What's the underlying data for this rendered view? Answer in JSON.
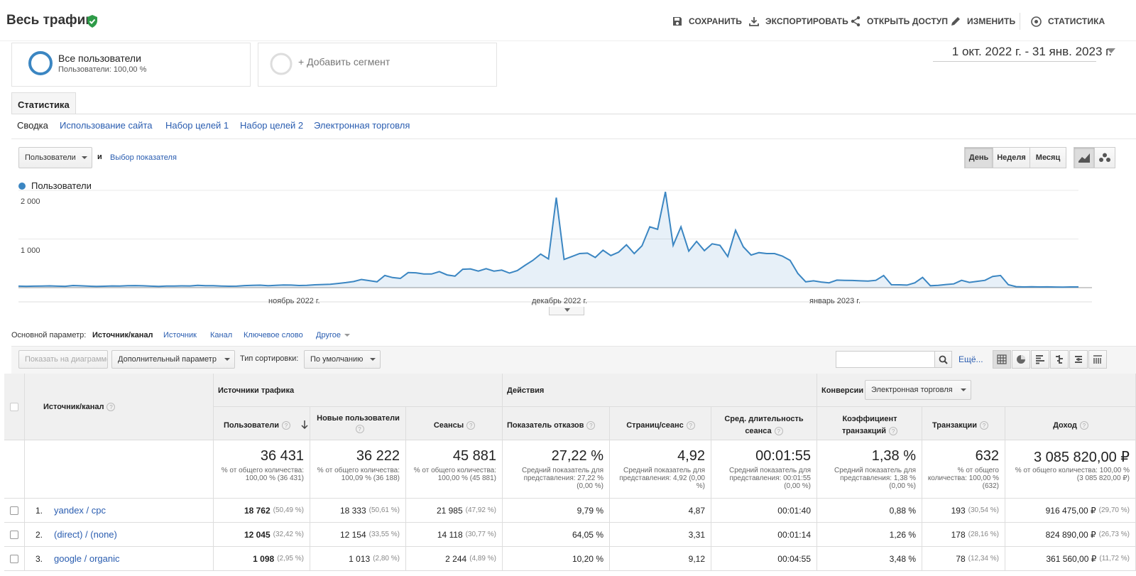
{
  "header": {
    "title": "Весь трафик",
    "actions": [
      {
        "label": "СОХРАНИТЬ",
        "icon": "save-icon"
      },
      {
        "label": "ЭКСПОРТИРОВАТЬ",
        "icon": "download-icon"
      },
      {
        "label": "ОТКРЫТЬ ДОСТУП",
        "icon": "share-icon"
      },
      {
        "label": "ИЗМЕНИТЬ",
        "icon": "pencil-icon"
      },
      {
        "label": "СТАТИСТИКА",
        "icon": "insights-icon"
      }
    ]
  },
  "segments": {
    "active_name": "Все пользователи",
    "active_sub": "Пользователи: 100,00 %",
    "add_label": "+ Добавить сегмент"
  },
  "date_range": "1 окт. 2022 г. - 31 янв. 2023 г.",
  "tabs": {
    "main": "Статистика",
    "sub": [
      "Сводка",
      "Использование сайта",
      "Набор целей 1",
      "Набор целей 2",
      "Электронная торговля"
    ]
  },
  "chart_controls": {
    "metric_select": "Пользователи",
    "and_label": "и",
    "choose_metric": "Выбор показателя",
    "granularity": [
      "День",
      "Неделя",
      "Месяц"
    ]
  },
  "chart_data": {
    "type": "area",
    "series": [
      {
        "name": "Пользователи",
        "values": [
          30,
          28,
          31,
          34,
          36,
          30,
          28,
          44,
          38,
          31,
          27,
          29,
          35,
          33,
          40,
          42,
          38,
          31,
          26,
          32,
          34,
          37,
          35,
          47,
          39,
          41,
          33,
          29,
          31,
          42,
          48,
          51,
          40,
          46,
          54,
          52,
          44,
          48,
          58,
          64,
          70,
          86,
          104,
          126,
          168,
          145,
          120,
          250,
          208,
          190,
          310,
          305,
          280,
          280,
          330,
          262,
          236,
          378,
          385,
          340,
          390,
          340,
          360,
          300,
          350,
          460,
          560,
          690,
          590,
          1850,
          580,
          640,
          700,
          710,
          620,
          770,
          660,
          730,
          880,
          700,
          860,
          1250,
          1200,
          1970,
          870,
          1250,
          750,
          950,
          760,
          900,
          870,
          640,
          1180,
          840,
          670,
          720,
          700,
          700,
          650,
          560,
          290,
          120,
          140,
          115,
          100,
          155,
          150,
          148,
          140,
          135,
          150,
          250,
          60,
          58,
          52,
          100,
          210,
          40,
          48,
          64,
          78,
          150,
          108,
          130,
          150,
          230,
          250,
          60,
          20,
          15,
          18,
          14,
          16,
          13,
          12,
          15,
          14
        ]
      }
    ],
    "y_ticks": [
      "2 000",
      "1 000"
    ],
    "x_ticks": [
      "ноябрь 2022 г.",
      "декабрь 2022 г.",
      "январь 2023 г."
    ],
    "ylim": [
      0,
      2000
    ]
  },
  "dimension_bar": {
    "label": "Основной параметр:",
    "active": "Источник/канал",
    "links": [
      "Источник",
      "Канал",
      "Ключевое слово",
      "Другое"
    ]
  },
  "toolbar": {
    "plot_button": "Показать на диаграмме",
    "secondary_dim": "Дополнительный параметр",
    "sort_label": "Тип сортировки:",
    "sort_value": "По умолчанию",
    "more": "Ещё..."
  },
  "table": {
    "dim_header": "Источник/канал",
    "group_traffic": "Источники трафика",
    "group_actions": "Действия",
    "group_conv": "Конверсии",
    "conv_select": "Электронная торговля",
    "columns": [
      "Пользователи",
      "Новые пользователи",
      "Сеансы",
      "Показатель отказов",
      "Страниц/сеанс",
      "Сред. длительность сеанса",
      "Коэффициент транзакций",
      "Транзакции",
      "Доход"
    ],
    "totals": [
      {
        "big": "36 431",
        "sub": "% от общего количества: 100,00 % (36 431)"
      },
      {
        "big": "36 222",
        "sub": "% от общего количества: 100,09 % (36 188)"
      },
      {
        "big": "45 881",
        "sub": "% от общего количества: 100,00 % (45 881)"
      },
      {
        "big": "27,22 %",
        "sub": "Средний показатель для представления: 27,22 % (0,00 %)"
      },
      {
        "big": "4,92",
        "sub": "Средний показатель для представления: 4,92 (0,00 %)"
      },
      {
        "big": "00:01:55",
        "sub": "Средний показатель для представления: 00:01:55 (0,00 %)"
      },
      {
        "big": "1,38 %",
        "sub": "Средний показатель для представления: 1,38 % (0,00 %)"
      },
      {
        "big": "632",
        "sub": "% от общего количества: 100,00 % (632)"
      },
      {
        "big": "3 085 820,00 ₽",
        "sub": "% от общего количества: 100,00 % (3 085 820,00 ₽)"
      }
    ],
    "rows": [
      {
        "num": "1.",
        "name": "yandex / cpc",
        "users": "18 762",
        "users_pct": "(50,49 %)",
        "new": "18 333",
        "new_pct": "(50,61 %)",
        "sessions": "21 985",
        "sessions_pct": "(47,92 %)",
        "bounce": "9,79 %",
        "pages": "4,87",
        "duration": "00:01:40",
        "conv": "0,88 %",
        "trans": "193",
        "trans_pct": "(30,54 %)",
        "revenue": "916 475,00 ₽",
        "revenue_pct": "(29,70 %)"
      },
      {
        "num": "2.",
        "name": "(direct) / (none)",
        "users": "12 045",
        "users_pct": "(32,42 %)",
        "new": "12 154",
        "new_pct": "(33,55 %)",
        "sessions": "14 118",
        "sessions_pct": "(30,77 %)",
        "bounce": "64,05 %",
        "pages": "3,31",
        "duration": "00:01:14",
        "conv": "1,26 %",
        "trans": "178",
        "trans_pct": "(28,16 %)",
        "revenue": "824 890,00 ₽",
        "revenue_pct": "(26,73 %)"
      },
      {
        "num": "3.",
        "name": "google / organic",
        "users": "1 098",
        "users_pct": "(2,95 %)",
        "new": "1 013",
        "new_pct": "(2,80 %)",
        "sessions": "2 244",
        "sessions_pct": "(4,89 %)",
        "bounce": "10,20 %",
        "pages": "9,12",
        "duration": "00:04:55",
        "conv": "3,48 %",
        "trans": "78",
        "trans_pct": "(12,34 %)",
        "revenue": "361 560,00 ₽",
        "revenue_pct": "(11,72 %)"
      }
    ]
  },
  "colors": {
    "accent": "#3b86c2",
    "link": "#2a5db0",
    "verified": "#2e9b48"
  }
}
